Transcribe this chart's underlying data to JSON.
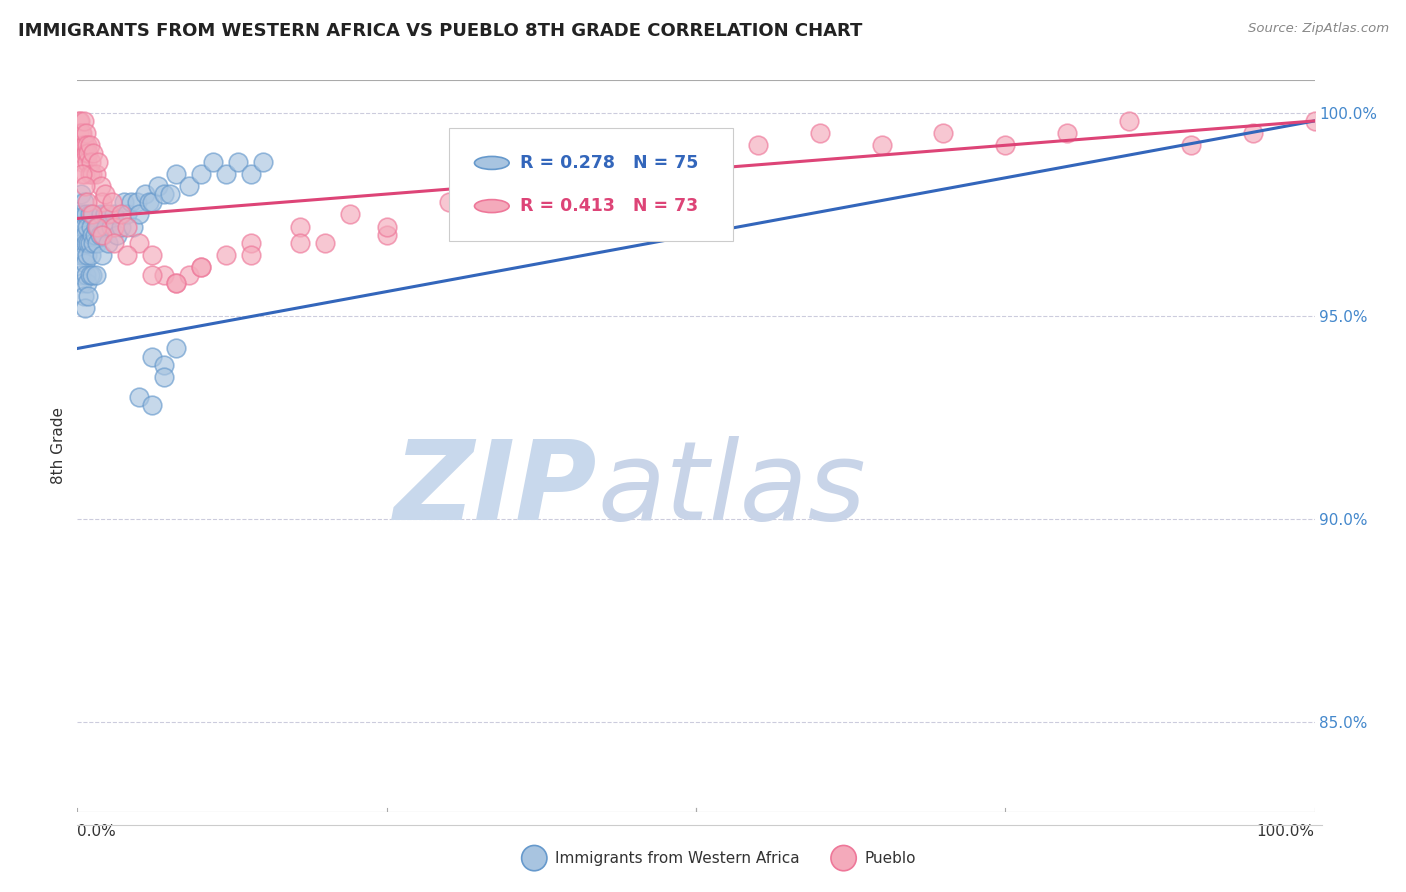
{
  "title": "IMMIGRANTS FROM WESTERN AFRICA VS PUEBLO 8TH GRADE CORRELATION CHART",
  "source": "Source: ZipAtlas.com",
  "ylabel": "8th Grade",
  "right_ytick_labels": [
    "100.0%",
    "95.0%",
    "90.0%",
    "85.0%"
  ],
  "right_ytick_values": [
    1.0,
    0.95,
    0.9,
    0.85
  ],
  "legend_blue_label": "Immigrants from Western Africa",
  "legend_pink_label": "Pueblo",
  "legend_blue_R": "R = 0.278",
  "legend_blue_N": "N = 75",
  "legend_pink_R": "R = 0.413",
  "legend_pink_N": "N = 73",
  "blue_color": "#A8C4E0",
  "pink_color": "#F4AABB",
  "blue_edge_color": "#6699CC",
  "pink_edge_color": "#EE7799",
  "blue_line_color": "#3366BB",
  "pink_line_color": "#DD4477",
  "watermark_zip": "ZIP",
  "watermark_atlas": "atlas",
  "watermark_color_zip": "#C8D8EC",
  "watermark_color_atlas": "#C8D4E8",
  "xlim": [
    0.0,
    1.0
  ],
  "ylim": [
    0.828,
    1.008
  ],
  "blue_scatter_x": [
    0.001,
    0.002,
    0.002,
    0.003,
    0.003,
    0.003,
    0.004,
    0.004,
    0.004,
    0.005,
    0.005,
    0.005,
    0.005,
    0.006,
    0.006,
    0.006,
    0.007,
    0.007,
    0.007,
    0.008,
    0.008,
    0.008,
    0.009,
    0.009,
    0.01,
    0.01,
    0.01,
    0.011,
    0.011,
    0.012,
    0.012,
    0.013,
    0.013,
    0.014,
    0.015,
    0.015,
    0.016,
    0.017,
    0.018,
    0.019,
    0.02,
    0.021,
    0.022,
    0.023,
    0.025,
    0.027,
    0.03,
    0.032,
    0.035,
    0.038,
    0.04,
    0.043,
    0.045,
    0.048,
    0.05,
    0.055,
    0.058,
    0.06,
    0.065,
    0.07,
    0.075,
    0.08,
    0.09,
    0.1,
    0.11,
    0.12,
    0.13,
    0.14,
    0.15,
    0.06,
    0.07,
    0.08,
    0.05,
    0.06,
    0.07
  ],
  "blue_scatter_y": [
    0.97,
    0.965,
    0.975,
    0.96,
    0.972,
    0.98,
    0.958,
    0.968,
    0.975,
    0.955,
    0.965,
    0.972,
    0.978,
    0.952,
    0.963,
    0.97,
    0.96,
    0.968,
    0.975,
    0.958,
    0.965,
    0.972,
    0.955,
    0.968,
    0.96,
    0.968,
    0.975,
    0.965,
    0.972,
    0.96,
    0.97,
    0.968,
    0.975,
    0.97,
    0.96,
    0.972,
    0.968,
    0.972,
    0.97,
    0.975,
    0.965,
    0.97,
    0.975,
    0.972,
    0.968,
    0.972,
    0.975,
    0.97,
    0.972,
    0.978,
    0.975,
    0.978,
    0.972,
    0.978,
    0.975,
    0.98,
    0.978,
    0.978,
    0.982,
    0.98,
    0.98,
    0.985,
    0.982,
    0.985,
    0.988,
    0.985,
    0.988,
    0.985,
    0.988,
    0.94,
    0.938,
    0.942,
    0.93,
    0.928,
    0.935
  ],
  "pink_scatter_x": [
    0.001,
    0.001,
    0.002,
    0.002,
    0.003,
    0.003,
    0.004,
    0.004,
    0.005,
    0.005,
    0.006,
    0.006,
    0.007,
    0.007,
    0.008,
    0.008,
    0.009,
    0.01,
    0.01,
    0.011,
    0.012,
    0.013,
    0.015,
    0.017,
    0.019,
    0.02,
    0.022,
    0.025,
    0.028,
    0.03,
    0.035,
    0.04,
    0.05,
    0.06,
    0.07,
    0.08,
    0.09,
    0.1,
    0.12,
    0.14,
    0.18,
    0.2,
    0.22,
    0.25,
    0.3,
    0.35,
    0.4,
    0.45,
    0.5,
    0.55,
    0.6,
    0.65,
    0.7,
    0.75,
    0.8,
    0.85,
    0.9,
    0.95,
    1.0,
    0.004,
    0.006,
    0.008,
    0.012,
    0.016,
    0.02,
    0.03,
    0.04,
    0.06,
    0.08,
    0.1,
    0.14,
    0.18,
    0.25
  ],
  "pink_scatter_y": [
    0.998,
    0.995,
    0.992,
    0.998,
    0.99,
    0.995,
    0.988,
    0.995,
    0.992,
    0.998,
    0.985,
    0.992,
    0.99,
    0.995,
    0.988,
    0.992,
    0.99,
    0.985,
    0.992,
    0.988,
    0.985,
    0.99,
    0.985,
    0.988,
    0.982,
    0.978,
    0.98,
    0.975,
    0.978,
    0.972,
    0.975,
    0.972,
    0.968,
    0.965,
    0.96,
    0.958,
    0.96,
    0.962,
    0.965,
    0.968,
    0.972,
    0.968,
    0.975,
    0.97,
    0.978,
    0.982,
    0.985,
    0.988,
    0.99,
    0.992,
    0.995,
    0.992,
    0.995,
    0.992,
    0.995,
    0.998,
    0.992,
    0.995,
    0.998,
    0.985,
    0.982,
    0.978,
    0.975,
    0.972,
    0.97,
    0.968,
    0.965,
    0.96,
    0.958,
    0.962,
    0.965,
    0.968,
    0.972
  ],
  "blue_trend_y_start": 0.942,
  "blue_trend_y_end": 0.998,
  "pink_trend_y_start": 0.974,
  "pink_trend_y_end": 0.998
}
